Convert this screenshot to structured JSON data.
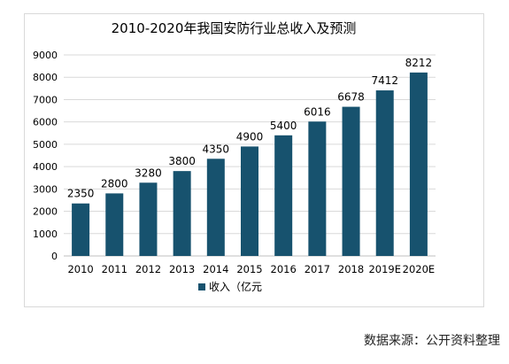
{
  "chart_data": {
    "type": "bar",
    "title": "2010-2020年我国安防行业总收入及预测",
    "categories": [
      "2010",
      "2011",
      "2012",
      "2013",
      "2014",
      "2015",
      "2016",
      "2017",
      "2018",
      "2019E",
      "2020E"
    ],
    "series": [
      {
        "name": "收入（亿元",
        "values": [
          2350,
          2800,
          3280,
          3800,
          4350,
          4900,
          5400,
          6016,
          6678,
          7412,
          8212
        ]
      }
    ],
    "ylim": [
      0,
      9000
    ],
    "yticks": [
      0,
      1000,
      2000,
      3000,
      4000,
      5000,
      6000,
      7000,
      8000,
      9000
    ],
    "grid": true,
    "legend": "bottom-center",
    "data_labels": true,
    "colors": {
      "bar": "#17526e",
      "grid": "#d9d9d9",
      "axis": "#bfbfbf",
      "text": "#000000"
    }
  },
  "source_note": "数据来源：公开资料整理"
}
